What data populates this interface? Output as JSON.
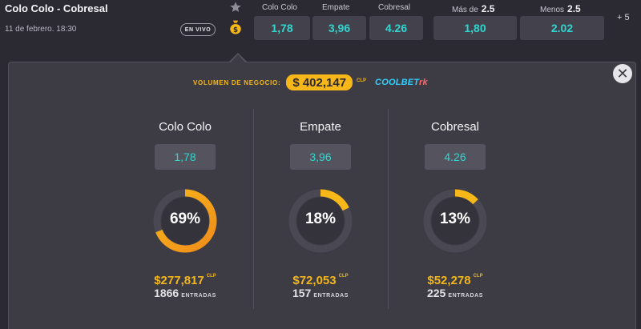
{
  "match": {
    "title": "Colo Colo - Cobresal",
    "date": "11 de febrero. 18:30",
    "live_label": "EN VIVO"
  },
  "icons": {
    "favorite": "star-icon",
    "money": "money-bag-icon",
    "close": "close-icon"
  },
  "odds": {
    "headers": {
      "home": "Colo Colo",
      "draw": "Empate",
      "away": "Cobresal",
      "over": "Más de",
      "over_line": "2.5",
      "under": "Menos",
      "under_line": "2.5"
    },
    "values": {
      "home": "1,78",
      "draw": "3,96",
      "away": "4.26",
      "over": "1,80",
      "under": "2.02"
    },
    "more": "+ 5"
  },
  "volume": {
    "label": "VOLUMEN DE NEGOCIO:",
    "amount": "$ 402,147",
    "currency": "CLP",
    "brand": {
      "main": "COOLBET",
      "suffix": "rk"
    }
  },
  "outcomes": [
    {
      "name": "Colo Colo",
      "odd": "1,78",
      "percent": "69%",
      "fraction": 0.69,
      "amount": "$277,817",
      "currency": "CLP",
      "entries": "1866",
      "entries_label": "ENTRADAS"
    },
    {
      "name": "Empate",
      "odd": "3,96",
      "percent": "18%",
      "fraction": 0.18,
      "amount": "$72,053",
      "currency": "CLP",
      "entries": "157",
      "entries_label": "ENTRADAS"
    },
    {
      "name": "Cobresal",
      "odd": "4.26",
      "percent": "13%",
      "fraction": 0.13,
      "amount": "$52,278",
      "currency": "CLP",
      "entries": "225",
      "entries_label": "ENTRADAS"
    }
  ],
  "colors": {
    "background": "#2b2a33",
    "panel": "#3d3c45",
    "odds_text": "#2fd6cf",
    "accent_yellow": "#f7b719",
    "accent_orange": "#f08c1a",
    "ring_track": "#4a4953",
    "ring_inner": "#34333b"
  }
}
